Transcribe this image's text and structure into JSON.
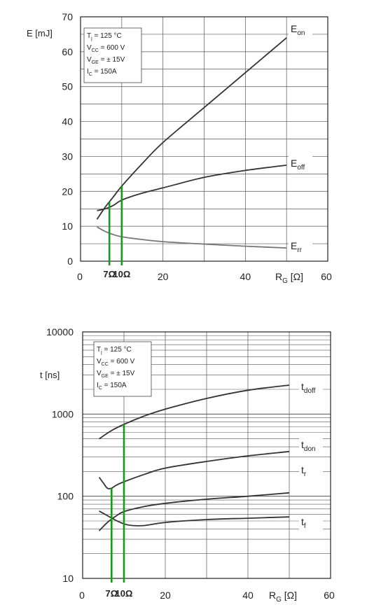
{
  "chart_data": [
    {
      "type": "line",
      "title": "",
      "ylabel": "E [mJ]",
      "xlabel_main": "R",
      "xlabel_sub": "G",
      "xlabel_unit": "[Ω]",
      "xlim": [
        0,
        60
      ],
      "ylim": [
        0,
        70
      ],
      "x_ticks": [
        "0",
        "20",
        "40",
        "60"
      ],
      "y_ticks": [
        "0",
        "10",
        "20",
        "30",
        "40",
        "50",
        "60",
        "70"
      ],
      "grid": true,
      "conditions": {
        "tj": {
          "main": "T",
          "sub": "j",
          "rest": " = 125 °C"
        },
        "vcc": {
          "main": "V",
          "sub": "CC",
          "rest": " = 600 V"
        },
        "vge": {
          "main": "V",
          "sub": "GE",
          "rest": " = ± 15V"
        },
        "ic": {
          "main": "I",
          "sub": "C",
          "rest": " = 150A"
        }
      },
      "markers": [
        {
          "x": 7,
          "label": "7Ω",
          "color": "#1a9a1a"
        },
        {
          "x": 10,
          "label": "10Ω",
          "color": "#1a9a1a"
        }
      ],
      "series": [
        {
          "name_main": "E",
          "name_sub": "on",
          "color": "#333333",
          "x": [
            4,
            6,
            8,
            10,
            15,
            20,
            30,
            40,
            50
          ],
          "y": [
            12,
            15.5,
            18.5,
            21.5,
            28,
            34,
            44,
            54,
            64
          ]
        },
        {
          "name_main": "E",
          "name_sub": "off",
          "color": "#333333",
          "x": [
            4,
            6,
            8,
            10,
            15,
            20,
            30,
            40,
            50
          ],
          "y": [
            14.5,
            15,
            16,
            17.5,
            19.5,
            21,
            24,
            26,
            27.5
          ]
        },
        {
          "name_main": "E",
          "name_sub": "rr",
          "color": "#777777",
          "x": [
            4,
            6,
            8,
            10,
            15,
            20,
            30,
            40,
            50
          ],
          "y": [
            9.8,
            8.5,
            7.6,
            7,
            6.2,
            5.6,
            4.9,
            4.3,
            3.8
          ]
        }
      ]
    },
    {
      "type": "line",
      "title": "",
      "ylabel": "t [ns]",
      "xlabel_main": "R",
      "xlabel_sub": "G",
      "xlabel_unit": "[Ω]",
      "xlim": [
        0,
        60
      ],
      "ylim": [
        10,
        10000
      ],
      "yscale": "log",
      "x_ticks": [
        "0",
        "20",
        "40",
        "60"
      ],
      "y_ticks": [
        "10",
        "100",
        "1000",
        "10000"
      ],
      "grid": true,
      "conditions": {
        "tj": {
          "main": "T",
          "sub": "j",
          "rest": " = 125 °C"
        },
        "vcc": {
          "main": "V",
          "sub": "CC",
          "rest": " = 600 V"
        },
        "vge": {
          "main": "V",
          "sub": "GE",
          "rest": " = ± 15V"
        },
        "ic": {
          "main": "I",
          "sub": "C",
          "rest": " = 150A"
        }
      },
      "markers": [
        {
          "x": 7,
          "label": "7Ω",
          "color": "#1a9a1a"
        },
        {
          "x": 10,
          "label": "10Ω",
          "color": "#1a9a1a"
        }
      ],
      "series": [
        {
          "name_main": "t",
          "name_sub": "doff",
          "color": "#333333",
          "x": [
            4,
            7,
            10,
            15,
            20,
            30,
            40,
            50
          ],
          "y": [
            500,
            630,
            750,
            950,
            1150,
            1550,
            1950,
            2250
          ]
        },
        {
          "name_main": "t",
          "name_sub": "don",
          "color": "#333333",
          "x": [
            4,
            5,
            6,
            7,
            8,
            10,
            15,
            20,
            30,
            40,
            50
          ],
          "y": [
            170,
            145,
            125,
            125,
            135,
            150,
            185,
            220,
            265,
            310,
            350
          ]
        },
        {
          "name_main": "t",
          "name_sub": "r",
          "color": "#333333",
          "x": [
            4,
            6,
            8,
            10,
            15,
            20,
            30,
            40,
            50
          ],
          "y": [
            38,
            48,
            57,
            65,
            75,
            82,
            92,
            100,
            110
          ]
        },
        {
          "name_main": "t",
          "name_sub": "f",
          "color": "#333333",
          "x": [
            4,
            6,
            8,
            10,
            12,
            15,
            20,
            30,
            40,
            50
          ],
          "y": [
            66,
            58,
            51,
            46,
            44,
            44,
            48,
            52,
            54,
            56
          ]
        }
      ]
    }
  ]
}
